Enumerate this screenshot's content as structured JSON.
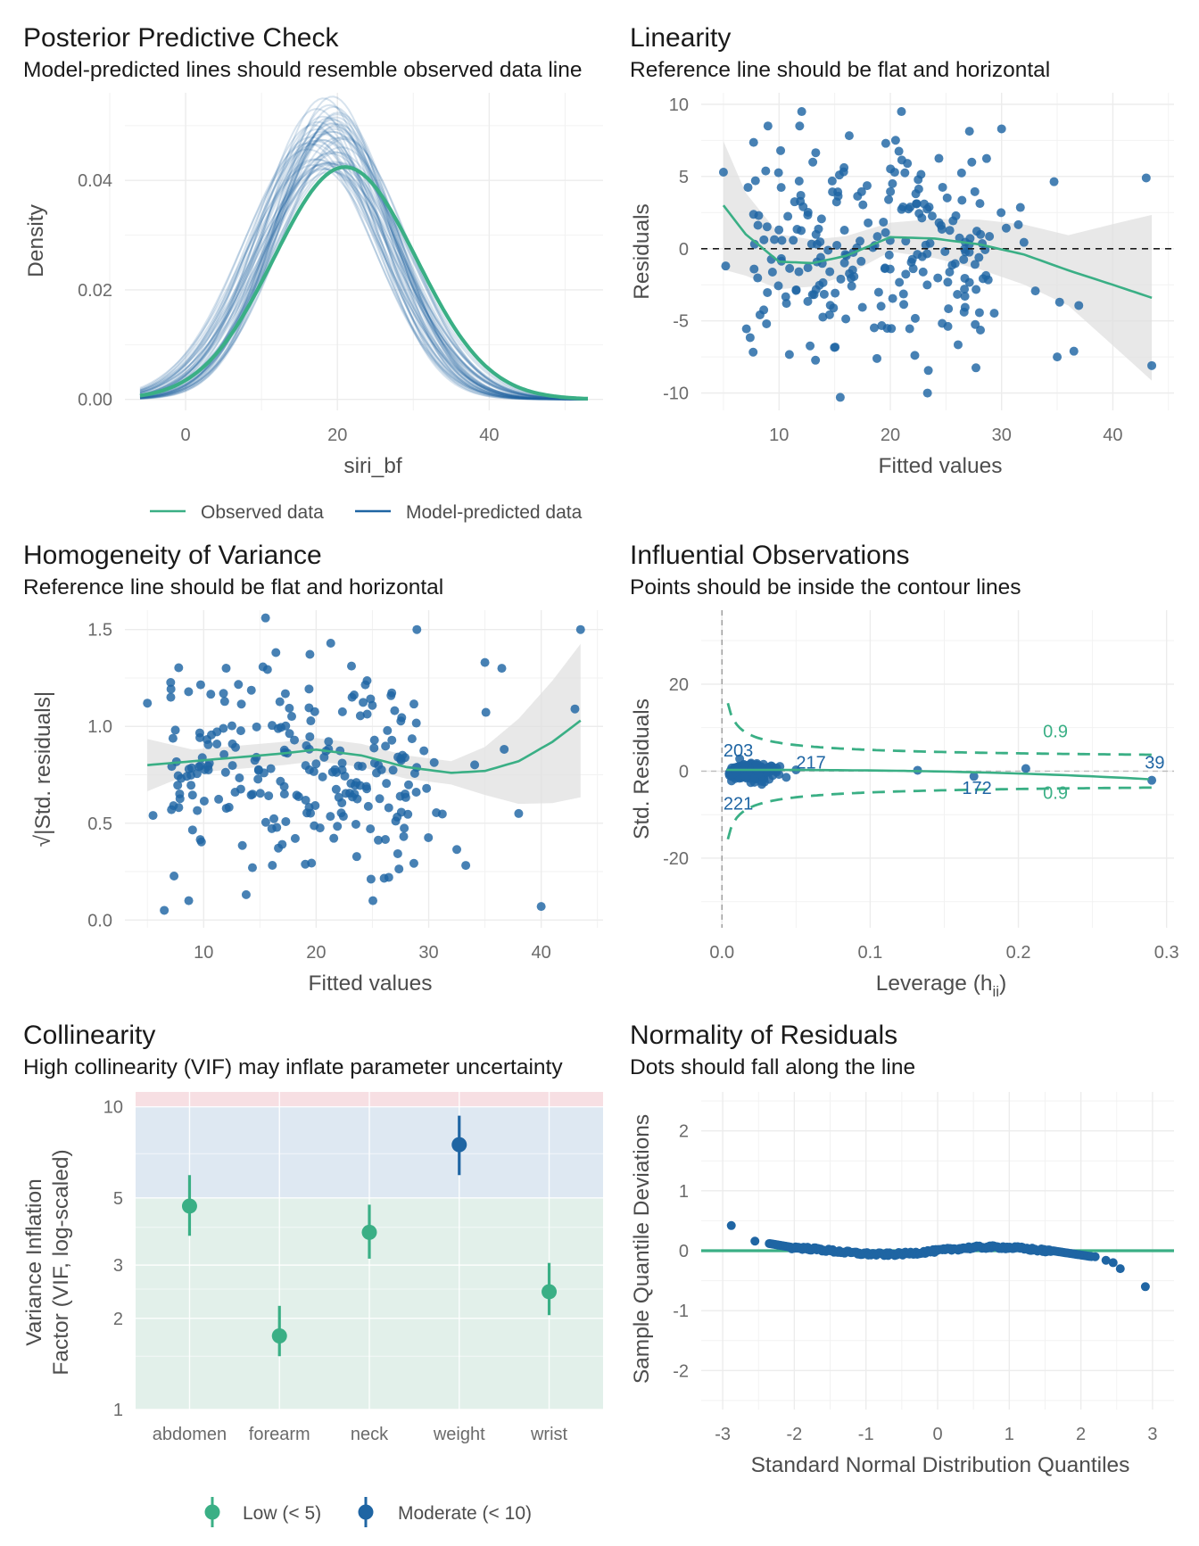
{
  "colors": {
    "observed": "#3AAF85",
    "predicted": "#1F65A3",
    "point": "#1F65A3",
    "smooth": "#3AAF85",
    "band": "#e0e0e0",
    "grid": "#ececec",
    "zone_low": "#e2f0ea",
    "zone_moderate": "#dee8f2",
    "zone_high": "#f7dfe3"
  },
  "chart_data": [
    {
      "id": "ppc",
      "type": "line",
      "title": "Posterior Predictive Check",
      "subtitle": "Model-predicted lines should resemble observed data line",
      "xlabel": "siri_bf",
      "ylabel": "Density",
      "xlim": [
        -8,
        55
      ],
      "ylim": [
        -0.002,
        0.056
      ],
      "x_ticks": [
        0,
        20,
        40
      ],
      "y_ticks": [
        0,
        0.02,
        0.04
      ],
      "y_tick_labels": [
        "0.00",
        "0.02",
        "0.04"
      ],
      "observed": {
        "name": "Observed data",
        "mean": 21.0,
        "sd": 9.4,
        "x_range": [
          -6,
          53
        ]
      },
      "predicted": {
        "name": "Model-predicted data",
        "draws": 50,
        "mean_range": [
          16,
          21
        ],
        "sd_range": [
          7.2,
          9.6
        ]
      },
      "legend": "bottom"
    },
    {
      "id": "linearity",
      "type": "scatter",
      "title": "Linearity",
      "subtitle": "Reference line should be flat and horizontal",
      "xlabel": "Fitted values",
      "ylabel": "Residuals",
      "xlim": [
        3,
        45.5
      ],
      "ylim": [
        -11.2,
        10.8
      ],
      "x_ticks": [
        10,
        20,
        30,
        40
      ],
      "y_ticks": [
        -10,
        -5,
        0,
        5,
        10
      ],
      "reference_line": 0,
      "n_points": 252,
      "extreme_points": [
        [
          5,
          5.3
        ],
        [
          5.2,
          -1.2
        ],
        [
          9,
          8.5
        ],
        [
          15.5,
          -10.3
        ],
        [
          21,
          9.5
        ],
        [
          30,
          8.3
        ],
        [
          36.5,
          -7.1
        ],
        [
          35,
          -7.5
        ],
        [
          43,
          4.9
        ],
        [
          43.5,
          -8.1
        ]
      ],
      "smooth": [
        [
          5,
          3.0
        ],
        [
          7,
          1.0
        ],
        [
          10,
          -0.9
        ],
        [
          13,
          -1.0
        ],
        [
          16,
          -0.5
        ],
        [
          20,
          0.8
        ],
        [
          24,
          0.7
        ],
        [
          28,
          0.3
        ],
        [
          32,
          -0.4
        ],
        [
          36,
          -1.5
        ],
        [
          40,
          -2.5
        ],
        [
          43.5,
          -3.4
        ]
      ]
    },
    {
      "id": "homogeneity",
      "type": "scatter",
      "title": "Homogeneity of Variance",
      "subtitle": "Reference line should be flat and horizontal",
      "xlabel": "Fitted values",
      "ylabel": "√|Std. residuals|",
      "xlim": [
        3,
        45.5
      ],
      "ylim": [
        -0.04,
        1.6
      ],
      "x_ticks": [
        10,
        20,
        30,
        40
      ],
      "y_ticks": [
        0,
        0.5,
        1,
        1.5
      ],
      "y_tick_labels": [
        "0.0",
        "0.5",
        "1.0",
        "1.5"
      ],
      "n_points": 252,
      "extreme_points": [
        [
          5,
          1.12
        ],
        [
          5.5,
          0.54
        ],
        [
          6.5,
          0.05
        ],
        [
          15.5,
          1.56
        ],
        [
          35,
          1.33
        ],
        [
          36.5,
          1.3
        ],
        [
          38,
          0.55
        ],
        [
          40,
          0.07
        ],
        [
          43,
          1.09
        ],
        [
          43.5,
          1.5
        ]
      ],
      "smooth": [
        [
          5,
          0.8
        ],
        [
          9,
          0.82
        ],
        [
          13,
          0.84
        ],
        [
          17,
          0.86
        ],
        [
          20,
          0.88
        ],
        [
          24,
          0.85
        ],
        [
          28,
          0.79
        ],
        [
          32,
          0.76
        ],
        [
          35,
          0.77
        ],
        [
          38,
          0.82
        ],
        [
          41,
          0.92
        ],
        [
          43.5,
          1.03
        ]
      ]
    },
    {
      "id": "influence",
      "type": "scatter",
      "title": "Influential Observations",
      "subtitle": "Points should be inside the contour lines",
      "xlabel": "Leverage (h",
      "xlabel_subscript": "ii",
      "xlabel_suffix": ")",
      "ylabel": "Std. Residuals",
      "xlim": [
        -0.014,
        0.305
      ],
      "ylim": [
        -36,
        37
      ],
      "x_ticks": [
        0,
        0.1,
        0.2,
        0.3
      ],
      "x_tick_labels": [
        "0.0",
        "0.1",
        "0.2",
        "0.3"
      ],
      "y_ticks": [
        -20,
        0,
        20
      ],
      "contour_labels": [
        "0.9",
        "0.9"
      ],
      "labels": [
        "203",
        "221",
        "217",
        "172",
        "39"
      ],
      "points": [
        [
          0.05,
          0.3
        ],
        [
          0.132,
          0.2
        ],
        [
          0.205,
          0.6
        ],
        [
          0.29,
          -2.1
        ],
        [
          0.17,
          -1.2
        ]
      ]
    },
    {
      "id": "collinearity",
      "type": "scatter",
      "title": "Collinearity",
      "subtitle": "High collinearity (VIF) may inflate parameter uncertainty",
      "ylabel": "Variance Inflation\nFactor (VIF, log-scaled)",
      "y_scale": "log",
      "ylim": [
        1,
        11.2
      ],
      "y_ticks": [
        1,
        2,
        3,
        5,
        10
      ],
      "categories": [
        "abdomen",
        "forearm",
        "neck",
        "weight",
        "wrist"
      ],
      "values": [
        4.7,
        1.75,
        3.85,
        7.5,
        2.45
      ],
      "ci_low": [
        3.75,
        1.5,
        3.15,
        5.95,
        2.05
      ],
      "ci_high": [
        5.95,
        2.2,
        4.75,
        9.35,
        3.05
      ],
      "groups": [
        "Low (< 5)",
        "Low (< 5)",
        "Low (< 5)",
        "Moderate (< 10)",
        "Low (< 5)"
      ],
      "legend": "bottom"
    },
    {
      "id": "normality",
      "type": "scatter",
      "title": "Normality of Residuals",
      "subtitle": "Dots should fall along the line",
      "xlabel": "Standard Normal Distribution Quantiles",
      "ylabel": "Sample Quantile Deviations",
      "xlim": [
        -3.3,
        3.3
      ],
      "ylim": [
        -2.65,
        2.65
      ],
      "x_ticks": [
        -3,
        -2,
        -1,
        0,
        1,
        2,
        3
      ],
      "y_ticks": [
        -2,
        -1,
        0,
        1,
        2
      ],
      "reference_line": 0,
      "n_points": 252,
      "tail_points": [
        [
          -2.88,
          0.42
        ],
        [
          -2.55,
          0.16
        ],
        [
          2.2,
          -0.1
        ],
        [
          2.35,
          -0.16
        ],
        [
          2.45,
          -0.2
        ],
        [
          2.55,
          -0.3
        ],
        [
          2.9,
          -0.6
        ]
      ]
    }
  ],
  "legends": {
    "ppc": [
      "Observed data",
      "Model-predicted data"
    ],
    "collinearity": [
      "Low (< 5)",
      "Moderate (< 10)"
    ]
  }
}
